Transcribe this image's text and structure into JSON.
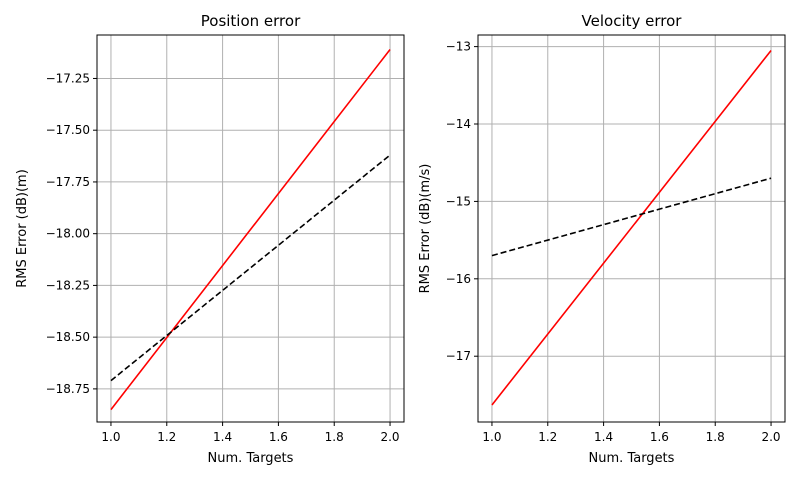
{
  "chart_data": [
    {
      "type": "line",
      "title": "Position error",
      "xlabel": "Num. Targets",
      "ylabel": "RMS Error (dB)(m)",
      "xlim": [
        0.95,
        2.05
      ],
      "ylim": [
        -18.91,
        -17.04
      ],
      "grid": true,
      "xticks": [
        1.0,
        1.2,
        1.4,
        1.6,
        1.8,
        2.0
      ],
      "xtick_labels": [
        "1.0",
        "1.2",
        "1.4",
        "1.6",
        "1.8",
        "2.0"
      ],
      "yticks": [
        -18.75,
        -18.5,
        -18.25,
        -18.0,
        -17.75,
        -17.5,
        -17.25
      ],
      "ytick_labels": [
        "−18.75",
        "−18.50",
        "−18.25",
        "−18.00",
        "−17.75",
        "−17.50",
        "−17.25"
      ],
      "series": [
        {
          "color": "#ff0000",
          "dash": "solid",
          "x": [
            1.0,
            2.0
          ],
          "y": [
            -18.85,
            -17.11
          ]
        },
        {
          "color": "#000000",
          "dash": "dashed",
          "x": [
            1.0,
            2.0
          ],
          "y": [
            -18.71,
            -17.62
          ]
        }
      ]
    },
    {
      "type": "line",
      "title": "Velocity error",
      "xlabel": "Num. Targets",
      "ylabel": "RMS Error (dB)(m/s)",
      "xlim": [
        0.95,
        2.05
      ],
      "ylim": [
        -17.85,
        -12.85
      ],
      "grid": true,
      "xticks": [
        1.0,
        1.2,
        1.4,
        1.6,
        1.8,
        2.0
      ],
      "xtick_labels": [
        "1.0",
        "1.2",
        "1.4",
        "1.6",
        "1.8",
        "2.0"
      ],
      "yticks": [
        -17,
        -16,
        -15,
        -14,
        -13
      ],
      "ytick_labels": [
        "−17",
        "−16",
        "−15",
        "−14",
        "−13"
      ],
      "series": [
        {
          "color": "#ff0000",
          "dash": "solid",
          "x": [
            1.0,
            2.0
          ],
          "y": [
            -17.63,
            -13.05
          ]
        },
        {
          "color": "#000000",
          "dash": "dashed",
          "x": [
            1.0,
            2.0
          ],
          "y": [
            -15.7,
            -14.7
          ]
        }
      ]
    }
  ]
}
